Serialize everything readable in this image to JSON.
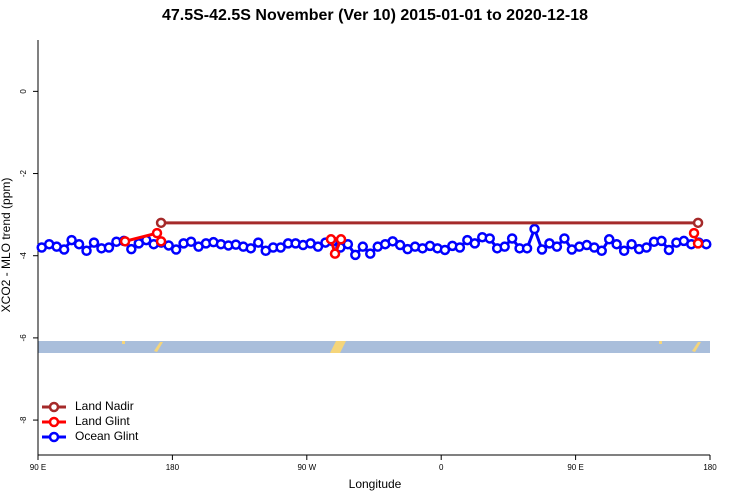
{
  "chart_data": {
    "type": "line",
    "title": "47.5S-42.5S November (Ver 10)   2015-01-01 to 2020-12-18",
    "x_label": "Longitude",
    "y_label": "XCO2 - MLO trend (ppm)",
    "xlim": [
      90,
      540
    ],
    "ylim": [
      -8.85,
      1.25
    ],
    "xticks": [
      {
        "value": 90,
        "label": "90 E"
      },
      180,
      {
        "value": 270,
        "label": "90 W"
      },
      {
        "value": 360,
        "label": "0"
      },
      {
        "value": 450,
        "label": "90 E"
      },
      {
        "value": 540,
        "label": "180"
      }
    ],
    "yticks": [
      0,
      -2,
      -4,
      -6,
      -8
    ],
    "legend": "bottom-left",
    "series": [
      {
        "name": "Land Nadir",
        "color": "#a52a2a",
        "x": [
          172.4,
          532.0
        ],
        "values": [
          -3.2,
          -3.2
        ]
      },
      {
        "name": "Land Glint",
        "color": "#ff0000",
        "x": [
          148.3,
          169.7,
          172.4,
          null,
          286.2,
          288.9,
          292.9,
          null,
          529.3,
          532.0
        ],
        "values": [
          -3.65,
          -3.45,
          -3.65,
          null,
          -3.6,
          -3.95,
          -3.6,
          null,
          -3.45,
          -3.7
        ]
      },
      {
        "name": "Ocean Glint",
        "color": "#0000ff",
        "x": [
          92.5,
          97.5,
          102.5,
          107.5,
          112.5,
          117.5,
          122.5,
          127.5,
          132.5,
          137.5,
          142.5,
          147.5,
          152.5,
          157.5,
          162.5,
          167.5,
          172.5,
          177.5,
          182.5,
          187.5,
          192.5,
          197.5,
          202.5,
          207.5,
          212.5,
          217.5,
          222.5,
          227.5,
          232.5,
          237.5,
          242.5,
          247.5,
          252.5,
          257.5,
          262.5,
          267.5,
          272.5,
          277.5,
          282.5,
          287.5,
          292.5,
          297.5,
          302.5,
          307.5,
          312.5,
          317.5,
          322.5,
          327.5,
          332.5,
          337.5,
          342.5,
          347.5,
          352.5,
          357.5,
          362.5,
          367.5,
          372.5,
          377.5,
          382.5,
          387.5,
          392.5,
          397.5,
          402.5,
          407.5,
          412.5,
          417.5,
          422.5,
          427.5,
          432.5,
          437.5,
          442.5,
          447.5,
          452.5,
          457.5,
          462.5,
          467.5,
          472.5,
          477.5,
          482.5,
          487.5,
          492.5,
          497.5,
          502.5,
          507.5,
          512.5,
          517.5,
          522.5,
          527.5,
          532.5,
          537.5
        ],
        "values": [
          -3.8,
          -3.72,
          -3.78,
          -3.85,
          -3.62,
          -3.72,
          -3.88,
          -3.68,
          -3.82,
          -3.8,
          -3.66,
          -3.64,
          -3.84,
          -3.7,
          -3.62,
          -3.72,
          -3.68,
          -3.75,
          -3.85,
          -3.7,
          -3.66,
          -3.78,
          -3.7,
          -3.67,
          -3.72,
          -3.75,
          -3.73,
          -3.78,
          -3.82,
          -3.68,
          -3.88,
          -3.8,
          -3.8,
          -3.7,
          -3.7,
          -3.74,
          -3.7,
          -3.78,
          -3.68,
          -3.65,
          -3.8,
          -3.72,
          -3.98,
          -3.78,
          -3.95,
          -3.78,
          -3.72,
          -3.65,
          -3.74,
          -3.84,
          -3.78,
          -3.82,
          -3.76,
          -3.82,
          -3.86,
          -3.76,
          -3.8,
          -3.62,
          -3.7,
          -3.55,
          -3.58,
          -3.82,
          -3.78,
          -3.58,
          -3.82,
          -3.82,
          -3.35,
          -3.85,
          -3.7,
          -3.78,
          -3.58,
          -3.85,
          -3.78,
          -3.74,
          -3.8,
          -3.88,
          -3.6,
          -3.72,
          -3.88,
          -3.72,
          -3.84,
          -3.8,
          -3.66,
          -3.64,
          -3.86,
          -3.68,
          -3.64,
          -3.72,
          -3.68,
          -3.72
        ]
      }
    ]
  }
}
